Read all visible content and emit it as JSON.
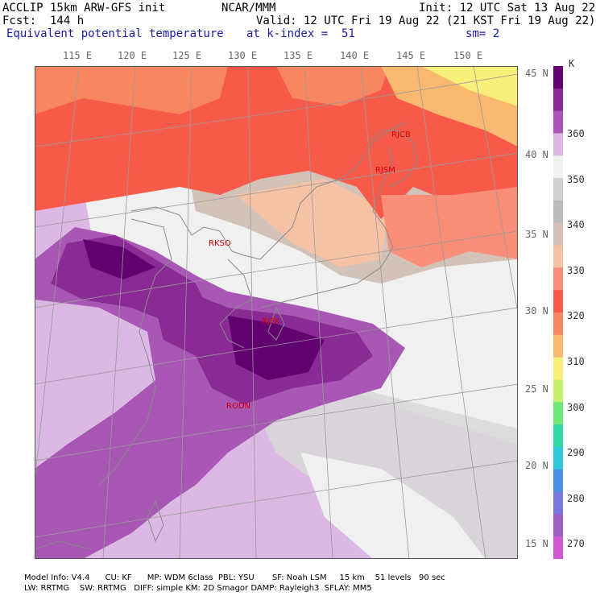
{
  "header": {
    "model": "ACCLIP 15km ARW-GFS init",
    "center": "NCAR/MMM",
    "init": "Init: 12 UTC Sat 13 Aug 22",
    "fcst": "Fcst:  144 h",
    "valid": "Valid: 12 UTC Fri 19 Aug 22 (21 KST Fri 19 Aug 22)",
    "field": "Equivalent potential temperature",
    "level": "at k-index =  51",
    "smooth": "sm= 2"
  },
  "lon_labels": [
    "115 E",
    "120 E",
    "125 E",
    "130 E",
    "135 E",
    "140 E",
    "145 E",
    "150 E"
  ],
  "lat_labels": [
    "45 N",
    "40 N",
    "35 N",
    "30 N",
    "25 N",
    "20 N",
    "15 N"
  ],
  "colorbar": {
    "unit": "K",
    "labels": [
      "360",
      "350",
      "340",
      "330",
      "320",
      "310",
      "300",
      "290",
      "280",
      "270"
    ],
    "colors": [
      "#620070",
      "#8a2a94",
      "#a858b4",
      "#dcb8e4",
      "#f0f0f0",
      "#d0d0d0",
      "#bcbcbc",
      "#d2c2b8",
      "#f5c2a6",
      "#fa8e78",
      "#f85a4a",
      "#f88660",
      "#f8b870",
      "#f8ee7a",
      "#c8f070",
      "#70e878",
      "#30d8a8",
      "#30c8d8",
      "#4890e0",
      "#7878e0",
      "#a060c0",
      "#d058d0"
    ]
  },
  "stations": [
    {
      "id": "RJCB"
    },
    {
      "id": "RJSM"
    },
    {
      "id": "RKSO"
    },
    {
      "id": "RJFK"
    },
    {
      "id": "RODN"
    }
  ],
  "footer": {
    "line1": "Model Info: V4.4      CU: KF      MP: WDM 6class  PBL: YSU       SF: Noah LSM     15 km    51 levels   90 sec",
    "line2": "LW: RRTMG    SW: RRTMG   DIFF: simple KM: 2D Smagor DAMP: Rayleigh3  SFLAY: MM5"
  }
}
